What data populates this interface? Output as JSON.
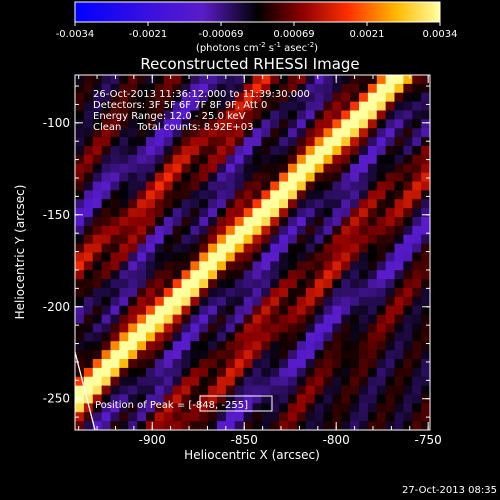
{
  "colorbar": {
    "tick_labels": [
      "-0.0034",
      "-0.0021",
      "-0.00069",
      "0.00069",
      "0.0021",
      "0.0034"
    ],
    "unit_label_main": "(photons cm",
    "unit_exp1": "-2",
    "unit_s": " s",
    "unit_exp2": "-1",
    "unit_asec": " asec",
    "unit_exp3": "-2",
    "unit_close": ")",
    "range": [
      -0.0034,
      0.0034
    ]
  },
  "plot": {
    "title": "Reconstructed RHESSI Image",
    "xlabel": "Heliocentric X (arcsec)",
    "ylabel": "Heliocentric Y (arcsec)",
    "x_ticks": [
      "-900",
      "-850",
      "-800",
      "-750"
    ],
    "y_ticks": [
      "-100",
      "-150",
      "-200",
      "-250"
    ],
    "xlim": [
      -942,
      -749
    ],
    "ylim": [
      -267,
      -74
    ]
  },
  "annotations": {
    "time_range": "26-Oct-2013 11:36:12.000 to 11:39:30.000",
    "detectors": "Detectors: 3F 5F 6F 7F 8F 9F, Att 0",
    "energy": "Energy Range: 12.0 - 25.0 keV",
    "clean": "Clean     Total counts: 8.92E+03",
    "peak": "Position of Peak = [-848, -255]"
  },
  "footer": {
    "timestamp": "27-Oct-2013 08:35"
  },
  "colors": {
    "background": "#000000",
    "text": "#ffffff",
    "colormap": [
      "#0000ff",
      "#5a1cc8",
      "#000000",
      "#8a0000",
      "#ff3000",
      "#ffb800",
      "#ffffa0"
    ]
  }
}
